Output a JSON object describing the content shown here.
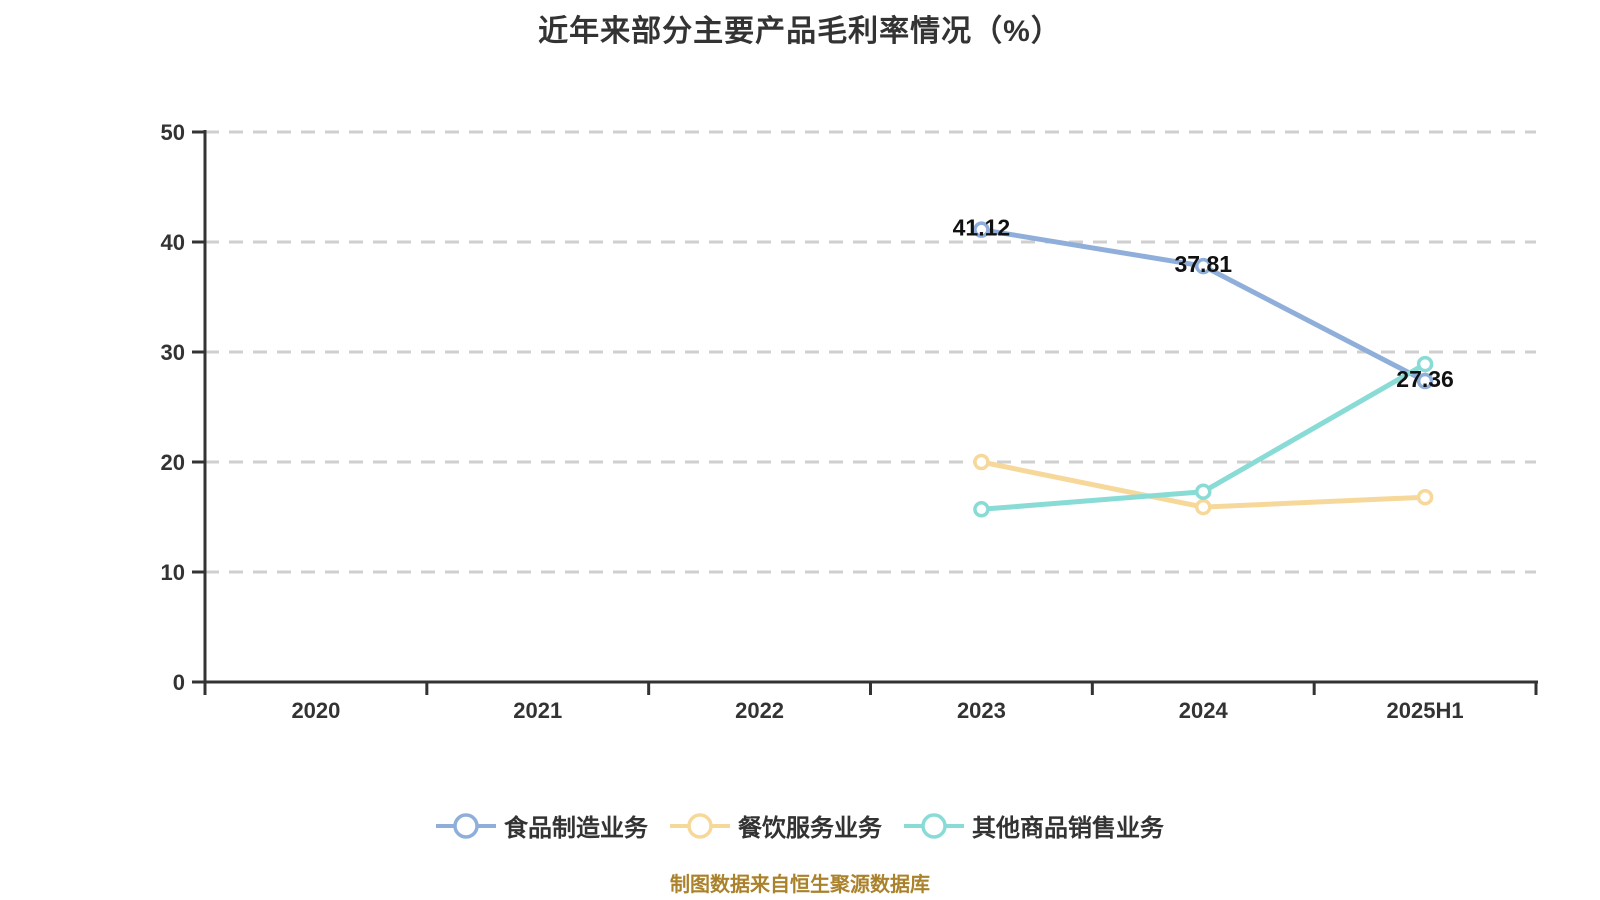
{
  "title": "近年来部分主要产品毛利率情况（%）",
  "caption": "制图数据来自恒生聚源数据库",
  "colors": {
    "background": "#ffffff",
    "axis": "#333333",
    "grid": "#cfcfcf",
    "tick_label": "#333333",
    "value_label": "#111111",
    "caption": "#ab822c",
    "series_food": "#8fafda",
    "series_catering": "#f7d89b",
    "series_other": "#89dbd6"
  },
  "chart_data": {
    "type": "line",
    "title": "近年来部分主要产品毛利率情况（%）",
    "categories": [
      "2020",
      "2021",
      "2022",
      "2023",
      "2024",
      "2025H1"
    ],
    "series": [
      {
        "name": "食品制造业务",
        "color": "#8fafda",
        "values": [
          null,
          null,
          null,
          41.12,
          37.81,
          27.36
        ],
        "value_labels": [
          null,
          null,
          null,
          "41.12",
          "37.81",
          "27.36"
        ]
      },
      {
        "name": "餐饮服务业务",
        "color": "#f7d89b",
        "values": [
          null,
          null,
          null,
          20.0,
          15.9,
          16.8
        ],
        "value_labels": [
          null,
          null,
          null,
          null,
          null,
          null
        ]
      },
      {
        "name": "其他商品销售业务",
        "color": "#89dbd6",
        "values": [
          null,
          null,
          null,
          15.7,
          17.3,
          28.9
        ],
        "value_labels": [
          null,
          null,
          null,
          null,
          null,
          null
        ]
      }
    ],
    "xlabel": "",
    "ylabel": "",
    "ylim": [
      0,
      50
    ],
    "yticks": [
      0,
      10,
      20,
      30,
      40,
      50
    ],
    "grid": "horizontal-dashed",
    "legend_position": "bottom",
    "marker": "open-circle"
  }
}
